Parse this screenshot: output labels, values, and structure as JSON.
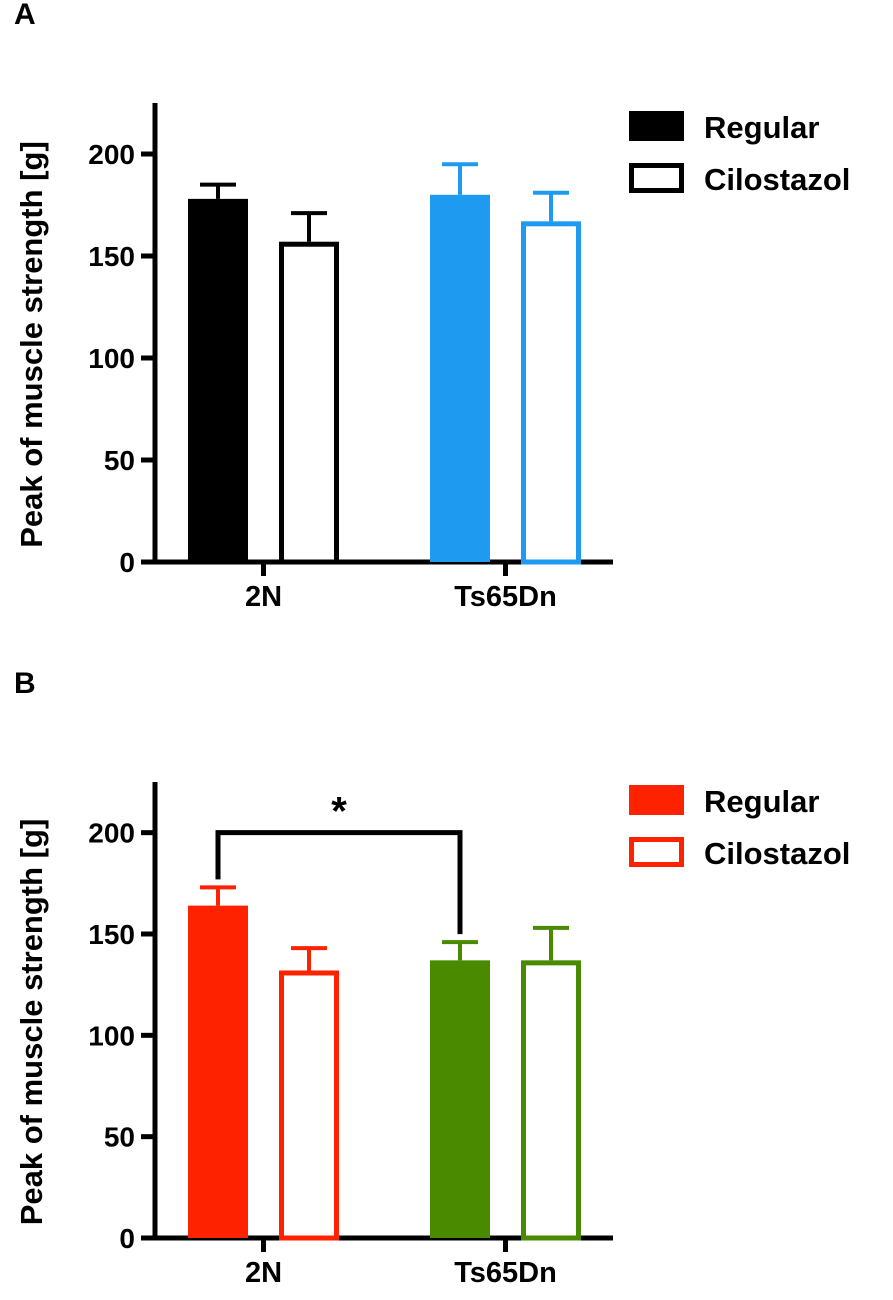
{
  "panels": [
    {
      "letter": "A"
    },
    {
      "letter": "B"
    }
  ],
  "chart_data": [
    {
      "type": "bar",
      "title": "",
      "xlabel": "",
      "ylabel": "Peak of muscle strength [g]",
      "ylim": [
        0,
        225
      ],
      "yticks": [
        0,
        50,
        100,
        150,
        200
      ],
      "categories": [
        "2N",
        "Ts65Dn"
      ],
      "legend_position": "top-right",
      "legend": [
        {
          "label": "Regular",
          "style": "filled",
          "color": "#000000"
        },
        {
          "label": "Cilostazol",
          "style": "outline",
          "color": "#000000"
        }
      ],
      "series": [
        {
          "name": "Regular",
          "values": [
            178,
            180
          ],
          "errors": [
            7,
            15
          ],
          "colors": [
            "#000000",
            "#1E9AF0"
          ],
          "style": "filled"
        },
        {
          "name": "Cilostazol",
          "values": [
            157,
            167
          ],
          "errors": [
            14,
            14
          ],
          "colors": [
            "#000000",
            "#1E9AF0"
          ],
          "style": "outline"
        }
      ],
      "annotations": []
    },
    {
      "type": "bar",
      "title": "",
      "xlabel": "",
      "ylabel": "Peak of muscle strength [g]",
      "ylim": [
        0,
        225
      ],
      "yticks": [
        0,
        50,
        100,
        150,
        200
      ],
      "categories": [
        "2N",
        "Ts65Dn"
      ],
      "legend_position": "top-right",
      "legend": [
        {
          "label": "Regular",
          "style": "filled",
          "color": "#FF2200"
        },
        {
          "label": "Cilostazol",
          "style": "outline",
          "color": "#FF2200"
        }
      ],
      "series": [
        {
          "name": "Regular",
          "values": [
            164,
            137
          ],
          "errors": [
            9,
            9
          ],
          "colors": [
            "#FF2200",
            "#4A8A00"
          ],
          "style": "filled"
        },
        {
          "name": "Cilostazol",
          "values": [
            132,
            137
          ],
          "errors": [
            11,
            16
          ],
          "colors": [
            "#FF2200",
            "#4A8A00"
          ],
          "style": "outline"
        }
      ],
      "annotations": [
        {
          "type": "significance",
          "label": "*",
          "from_category": 0,
          "from_series": 0,
          "to_category": 1,
          "to_series": 0,
          "y": 200
        }
      ]
    }
  ]
}
